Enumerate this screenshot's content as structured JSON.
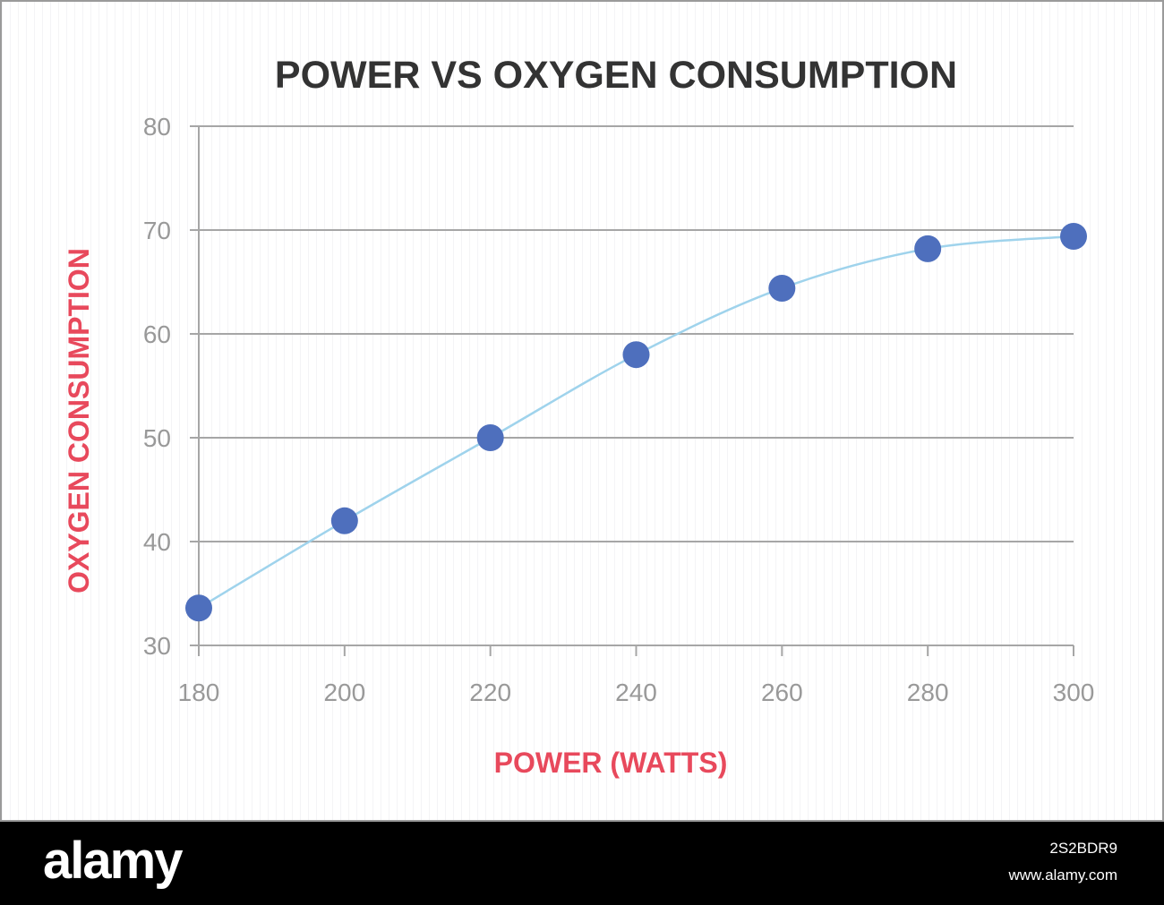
{
  "chart_data": {
    "type": "line",
    "title": "POWER VS OXYGEN CONSUMPTION",
    "xlabel": "POWER (WATTS)",
    "ylabel": "OXYGEN CONSUMPTION",
    "x": [
      180,
      200,
      220,
      240,
      260,
      280,
      300
    ],
    "series": [
      {
        "values": [
          33.6,
          42.0,
          50.0,
          58.0,
          64.4,
          68.2,
          69.4
        ]
      }
    ],
    "xlim": [
      180,
      300
    ],
    "ylim": [
      30,
      80
    ],
    "xticks": [
      "180",
      "200",
      "220",
      "240",
      "260",
      "280",
      "300"
    ],
    "yticks": [
      "30",
      "40",
      "50",
      "60",
      "70",
      "80"
    ],
    "grid": true,
    "colors": {
      "title": "#333333",
      "axis_label": "#e8495c",
      "tick": "#999999",
      "grid": "#a6a6a6",
      "line": "#9fd3ec",
      "marker": "#4e6fbd"
    }
  },
  "footer": {
    "logo": "alamy",
    "image_id": "2S2BDR9",
    "url": "www.alamy.com"
  }
}
